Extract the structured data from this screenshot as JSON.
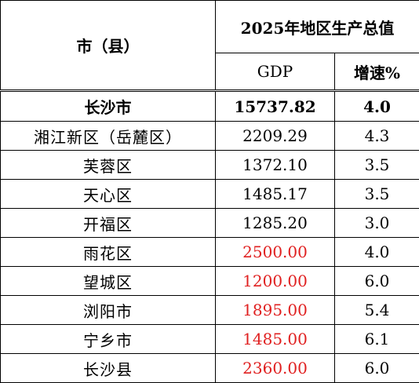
{
  "header": {
    "region_label": "市（县）",
    "group_title": "2025年地区生产总值",
    "gdp_label": "GDP",
    "growth_label": "增速%"
  },
  "colors": {
    "projected_value": "#e02020"
  },
  "rows": [
    {
      "name": "长沙市",
      "gdp": "15737.82",
      "growth": "4.0",
      "total": true
    },
    {
      "name": "湘江新区（岳麓区）",
      "gdp": "2209.29",
      "growth": "4.3"
    },
    {
      "name": "芙蓉区",
      "gdp": "1372.10",
      "growth": "3.5"
    },
    {
      "name": "天心区",
      "gdp": "1485.17",
      "growth": "3.5"
    },
    {
      "name": "开福区",
      "gdp": "1285.20",
      "growth": "3.0"
    },
    {
      "name": "雨花区",
      "gdp": "2500.00",
      "growth": "4.0",
      "red": true
    },
    {
      "name": "望城区",
      "gdp": "1200.00",
      "growth": "6.0",
      "red": true
    },
    {
      "name": "浏阳市",
      "gdp": "1895.00",
      "growth": "5.4",
      "red": true
    },
    {
      "name": "宁乡市",
      "gdp": "1485.00",
      "growth": "6.1",
      "red": true
    },
    {
      "name": "长沙县",
      "gdp": "2360.00",
      "growth": "6.0",
      "red": true
    }
  ]
}
